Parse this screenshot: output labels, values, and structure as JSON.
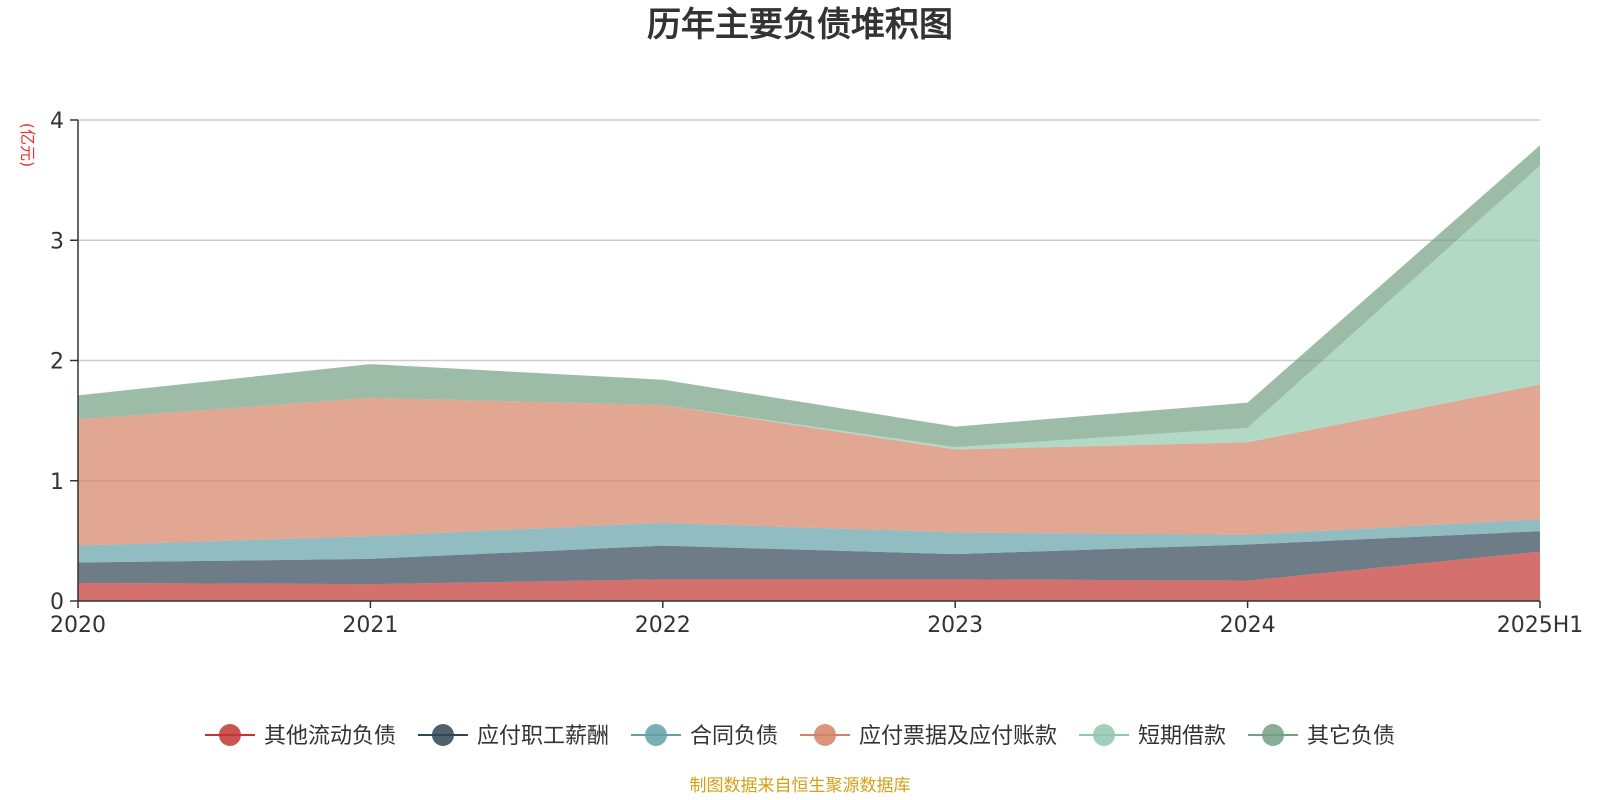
{
  "chart_data": {
    "type": "area",
    "stacked": true,
    "title": "历年主要负债堆积图",
    "unit_label": "(亿元)",
    "xlabel": "",
    "ylabel": "",
    "categories": [
      "2020",
      "2021",
      "2022",
      "2023",
      "2024",
      "2025H1"
    ],
    "ylim": [
      0,
      4
    ],
    "yticks": [
      "0",
      "1",
      "2",
      "3",
      "4"
    ],
    "grid": true,
    "legend_position": "bottom",
    "series": [
      {
        "name": "其他流动负债",
        "color": "#c23531",
        "values": [
          0.15,
          0.14,
          0.18,
          0.18,
          0.17,
          0.41
        ]
      },
      {
        "name": "应付职工薪酬",
        "color": "#2f4554",
        "values": [
          0.17,
          0.21,
          0.28,
          0.21,
          0.3,
          0.17
        ]
      },
      {
        "name": "合同负债",
        "color": "#61a0a8",
        "values": [
          0.14,
          0.19,
          0.19,
          0.18,
          0.08,
          0.1
        ]
      },
      {
        "name": "应付票据及应付账款",
        "color": "#d48265",
        "values": [
          1.05,
          1.15,
          0.98,
          0.69,
          0.77,
          1.12
        ]
      },
      {
        "name": "短期借款",
        "color": "#91c7ae",
        "values": [
          0.0,
          0.0,
          0.0,
          0.02,
          0.12,
          1.82
        ]
      },
      {
        "name": "其它负债",
        "color": "#749f83",
        "values": [
          0.2,
          0.28,
          0.21,
          0.17,
          0.21,
          0.17
        ]
      }
    ]
  },
  "source_text": "制图数据来自恒生聚源数据库"
}
